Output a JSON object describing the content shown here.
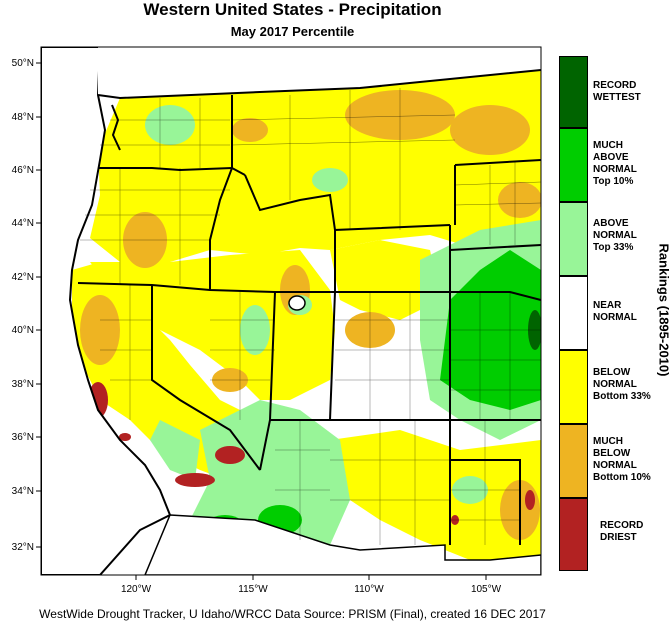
{
  "title": "Western United States - Precipitation",
  "subtitle": "May 2017 Percentile",
  "footer": "WestWide Drought Tracker, U Idaho/WRCC Data Source: PRISM (Final), created 16 DEC 2017",
  "legend_title": "Rankings (1895-2010)",
  "legend": [
    {
      "label": "RECORD WETTEST",
      "color": "#006400"
    },
    {
      "label": "MUCH ABOVE NORMAL Top 10%",
      "color": "#00cd00"
    },
    {
      "label": "ABOVE NORMAL Top 33%",
      "color": "#98f598"
    },
    {
      "label": "NEAR NORMAL",
      "color": "#ffffff"
    },
    {
      "label": "BELOW NORMAL Bottom 33%",
      "color": "#ffff00"
    },
    {
      "label": "MUCH BELOW NORMAL Bottom 10%",
      "color": "#eeb422"
    },
    {
      "label": "RECORD DRIEST",
      "color": "#b22222"
    }
  ],
  "lat_labels": [
    "50°N",
    "48°N",
    "46°N",
    "44°N",
    "42°N",
    "40°N",
    "38°N",
    "36°N",
    "34°N",
    "32°N"
  ],
  "lon_labels": [
    "120°W",
    "115°W",
    "110°W",
    "105°W"
  ]
}
